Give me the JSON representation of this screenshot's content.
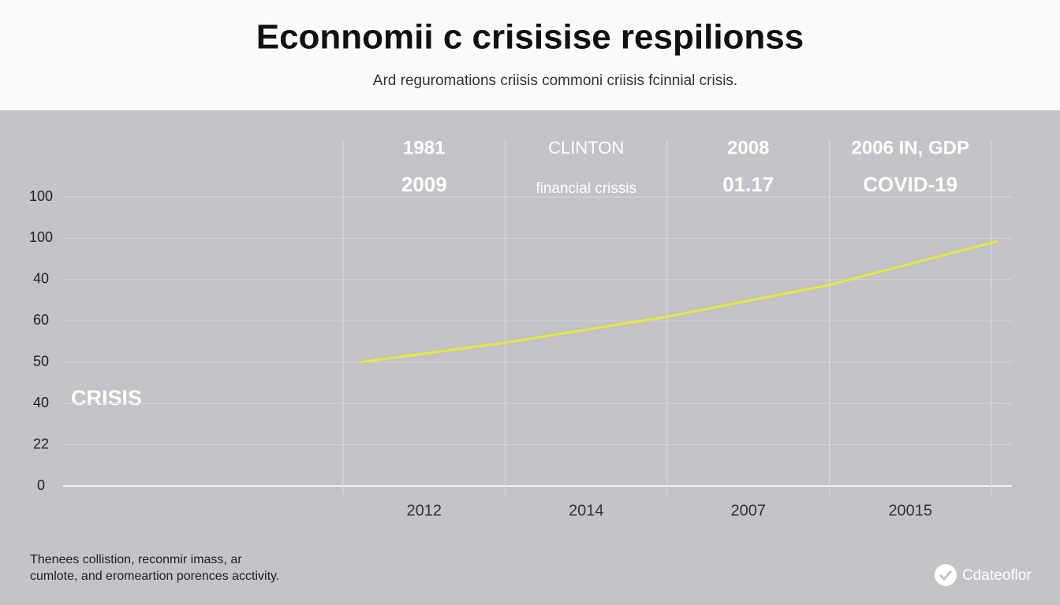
{
  "chart_data": {
    "type": "line",
    "title": "Econnomii c crisisise respilionss",
    "subtitle": "Ard reguromations criisis commoni criisis fcinnial crisis.",
    "categories": [
      "2012",
      "2014",
      "2007",
      "20015"
    ],
    "column_headers": [
      [
        "1981",
        "2009"
      ],
      [
        "CLINTON",
        "financial crissis"
      ],
      [
        "2008",
        "01.17"
      ],
      [
        "2006 IN, GDP",
        "COVID-19"
      ]
    ],
    "x": [
      0.11,
      1,
      2,
      3,
      4.04
    ],
    "xlim": [
      0,
      4
    ],
    "xticks": [
      0,
      1,
      2,
      3,
      4
    ],
    "series": [
      {
        "color": "#e6ea3c",
        "values": [
          3.0,
          3.47,
          4.1,
          4.87,
          5.93
        ]
      }
    ],
    "ylim": [
      0,
      7
    ],
    "yticks": [
      {
        "value": 0,
        "label": "0"
      },
      {
        "value": 1,
        "label": "22"
      },
      {
        "value": 2,
        "label": "40"
      },
      {
        "value": 3,
        "label": "50"
      },
      {
        "value": 4,
        "label": "60"
      },
      {
        "value": 5,
        "label": "40"
      },
      {
        "value": 6,
        "label": "100"
      },
      {
        "value": 7,
        "label": "100"
      }
    ],
    "grid": true,
    "annotation": "CRISIS",
    "footnote": [
      "Thenees collistion, reconmir imass, ar",
      "cumlote, and eromeartion porences acctivity."
    ],
    "logo": "Cdateoflor"
  }
}
